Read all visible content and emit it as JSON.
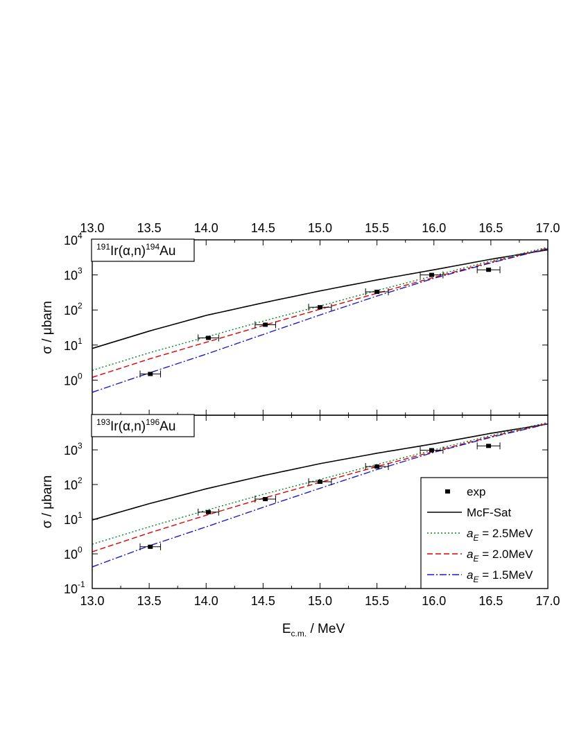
{
  "chart_data": [
    {
      "type": "line",
      "panel": "top",
      "reaction": {
        "pre": "191",
        "mid": "Ir(α,n)",
        "sup2": "194",
        "post": "Au"
      },
      "ylabel": "σ / μbarn",
      "xlim": [
        13.0,
        17.0
      ],
      "ylim_log10": [
        -1,
        4
      ],
      "yscale": "log",
      "x_ticks": [
        "13.0",
        "13.5",
        "14.0",
        "14.5",
        "15.0",
        "15.5",
        "16.0",
        "16.5",
        "17.0"
      ],
      "y_ticks": [
        {
          "base": "10",
          "exp": "0"
        },
        {
          "base": "10",
          "exp": "1"
        },
        {
          "base": "10",
          "exp": "2"
        },
        {
          "base": "10",
          "exp": "3"
        },
        {
          "base": "10",
          "exp": "4"
        }
      ],
      "x_tick_values": [
        13.0,
        13.5,
        14.0,
        14.5,
        15.0,
        15.5,
        16.0,
        16.5,
        17.0
      ],
      "y_tick_values": [
        0,
        1,
        2,
        3,
        4
      ],
      "x": [
        13.0,
        13.5,
        14.0,
        14.5,
        15.0,
        15.5,
        16.0,
        16.5,
        17.0
      ],
      "series": [
        {
          "name": "McF-Sat",
          "color": "#000000",
          "style": "solid",
          "values": [
            8,
            25,
            70,
            160,
            350,
            720,
            1400,
            2800,
            5200
          ]
        },
        {
          "name": "a_E = 2.5MeV",
          "color": "#00801e",
          "style": "dotted",
          "values": [
            1.9,
            6,
            17,
            48,
            130,
            360,
            950,
            2500,
            6200
          ]
        },
        {
          "name": "a_E = 2.0MeV",
          "color": "#e00000",
          "style": "dashed",
          "values": [
            1.2,
            4,
            12,
            36,
            105,
            300,
            850,
            2300,
            5800
          ]
        },
        {
          "name": "a_E = 1.5MeV",
          "color": "#1a1acc",
          "style": "dashdot",
          "values": [
            0.45,
            1.6,
            5.5,
            20,
            72,
            250,
            800,
            2200,
            5600
          ]
        }
      ],
      "experiment": {
        "name": "exp",
        "points": [
          {
            "x": 13.51,
            "y": 1.5,
            "xerr": 0.09
          },
          {
            "x": 14.02,
            "y": 16,
            "xerr": 0.09
          },
          {
            "x": 14.52,
            "y": 38,
            "xerr": 0.09
          },
          {
            "x": 15.0,
            "y": 120,
            "xerr": 0.1
          },
          {
            "x": 15.5,
            "y": 330,
            "xerr": 0.1
          },
          {
            "x": 15.98,
            "y": 1000,
            "xerr": 0.1
          },
          {
            "x": 16.48,
            "y": 1400,
            "xerr": 0.1
          }
        ]
      },
      "grid": false
    },
    {
      "type": "line",
      "panel": "bottom",
      "reaction": {
        "pre": "193",
        "mid": "Ir(α,n)",
        "sup2": "196",
        "post": "Au"
      },
      "ylabel": "σ / μbarn",
      "xlabel": "E",
      "xlabel_sub": "c.m.",
      "xlabel_unit": " / MeV",
      "xlim": [
        13.0,
        17.0
      ],
      "ylim_log10": [
        -1,
        4
      ],
      "yscale": "log",
      "x_ticks": [
        "13.0",
        "13.5",
        "14.0",
        "14.5",
        "15.0",
        "15.5",
        "16.0",
        "16.5",
        "17.0"
      ],
      "y_ticks": [
        {
          "base": "10",
          "exp": "-1"
        },
        {
          "base": "10",
          "exp": "0"
        },
        {
          "base": "10",
          "exp": "1"
        },
        {
          "base": "10",
          "exp": "2"
        },
        {
          "base": "10",
          "exp": "3"
        }
      ],
      "x_tick_values": [
        13.0,
        13.5,
        14.0,
        14.5,
        15.0,
        15.5,
        16.0,
        16.5,
        17.0
      ],
      "y_tick_values": [
        -1,
        0,
        1,
        2,
        3
      ],
      "x": [
        13.0,
        13.5,
        14.0,
        14.5,
        15.0,
        15.5,
        16.0,
        16.5,
        17.0
      ],
      "series": [
        {
          "name": "McF-Sat",
          "color": "#000000",
          "style": "solid",
          "values": [
            9.5,
            28,
            75,
            180,
            400,
            800,
            1500,
            3000,
            5600
          ]
        },
        {
          "name": "a_E = 2.5MeV",
          "color": "#00801e",
          "style": "dotted",
          "values": [
            1.9,
            6,
            18,
            52,
            140,
            380,
            1000,
            2600,
            6200
          ]
        },
        {
          "name": "a_E = 2.0MeV",
          "color": "#e00000",
          "style": "dashed",
          "values": [
            1.15,
            4,
            13,
            40,
            115,
            330,
            900,
            2400,
            5800
          ]
        },
        {
          "name": "a_E = 1.5MeV",
          "color": "#1a1acc",
          "style": "dashdot",
          "values": [
            0.42,
            1.7,
            6,
            22,
            78,
            270,
            850,
            2300,
            5600
          ]
        }
      ],
      "experiment": {
        "name": "exp",
        "points": [
          {
            "x": 13.51,
            "y": 1.6,
            "xerr": 0.09
          },
          {
            "x": 14.02,
            "y": 16,
            "xerr": 0.09
          },
          {
            "x": 14.52,
            "y": 38,
            "xerr": 0.09
          },
          {
            "x": 15.0,
            "y": 120,
            "xerr": 0.1
          },
          {
            "x": 15.5,
            "y": 330,
            "xerr": 0.1
          },
          {
            "x": 15.98,
            "y": 980,
            "xerr": 0.1
          },
          {
            "x": 16.48,
            "y": 1300,
            "xerr": 0.1
          }
        ]
      },
      "legend": {
        "placement": "bottom-right",
        "entries": [
          {
            "label": "exp",
            "kind": "marker"
          },
          {
            "label": "McF-Sat",
            "kind": "line",
            "series": 0
          },
          {
            "label_italic": "a",
            "label_sub": "E",
            "label_rest": " = 2.5MeV",
            "kind": "line",
            "series": 1
          },
          {
            "label_italic": "a",
            "label_sub": "E",
            "label_rest": " = 2.0MeV",
            "kind": "line",
            "series": 2
          },
          {
            "label_italic": "a",
            "label_sub": "E",
            "label_rest": " = 1.5MeV",
            "kind": "line",
            "series": 3
          }
        ]
      },
      "grid": false
    }
  ]
}
